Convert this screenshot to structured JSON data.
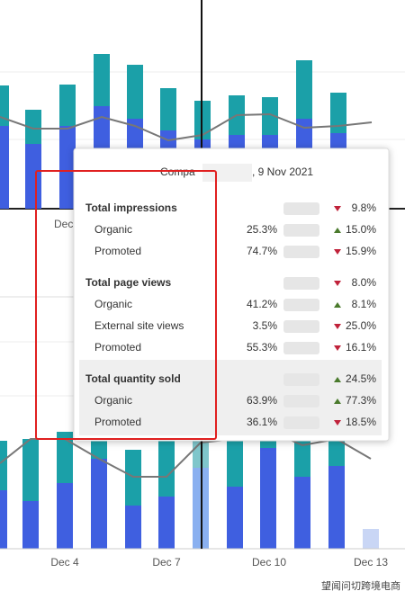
{
  "header": {
    "prefix": "Compa",
    "date": ", 9 Nov 2021"
  },
  "sections": [
    {
      "title": "Total impressions",
      "change": "9.8%",
      "trend": "down",
      "highlighted": false,
      "rows": [
        {
          "label": "Organic",
          "share": "25.3%",
          "change": "15.0%",
          "trend": "up"
        },
        {
          "label": "Promoted",
          "share": "74.7%",
          "change": "15.9%",
          "trend": "down"
        }
      ]
    },
    {
      "title": "Total page views",
      "change": "8.0%",
      "trend": "down",
      "highlighted": false,
      "rows": [
        {
          "label": "Organic",
          "share": "41.2%",
          "change": "8.1%",
          "trend": "up"
        },
        {
          "label": "External site views",
          "share": "3.5%",
          "change": "25.0%",
          "trend": "down"
        },
        {
          "label": "Promoted",
          "share": "55.3%",
          "change": "16.1%",
          "trend": "down"
        }
      ]
    },
    {
      "title": "Total quantity sold",
      "change": "24.5%",
      "trend": "up",
      "highlighted": true,
      "rows": [
        {
          "label": "Organic",
          "share": "63.9%",
          "change": "77.3%",
          "trend": "up"
        },
        {
          "label": "Promoted",
          "share": "36.1%",
          "change": "18.5%",
          "trend": "down"
        }
      ]
    }
  ],
  "axis_labels": {
    "top": [
      "Dec"
    ],
    "bottom": [
      "Dec 4",
      "Dec 7",
      "Dec 10",
      "Dec 13"
    ]
  },
  "watermark": "望闻问切跨境电商"
}
